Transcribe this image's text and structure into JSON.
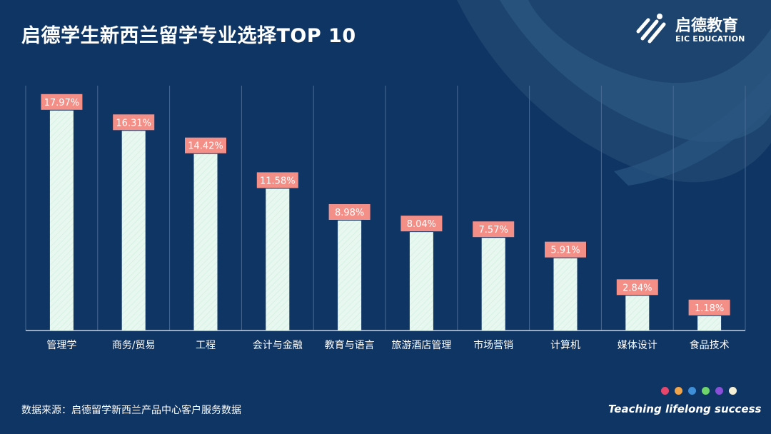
{
  "header": {
    "title": "启德学生新西兰留学专业选择TOP 10"
  },
  "brand": {
    "name_cn": "启德教育",
    "name_en": "EIC EDUCATION",
    "logo_icon": "eic-logo-icon"
  },
  "footer": {
    "source": "数据来源：启德留学新西兰产品中心客户服务数据",
    "slogan": "Teaching lifelong success",
    "dot_colors": [
      "#e8466a",
      "#f0a54a",
      "#3f8fd8",
      "#6fd46b",
      "#8a4fd8",
      "#f4f0d8"
    ]
  },
  "colors": {
    "background": "#0f3564",
    "bar": "#e8f8f0",
    "label_background": "#f48f88"
  },
  "chart_data": {
    "type": "bar",
    "title": "启德学生新西兰留学专业选择TOP 10",
    "xlabel": "",
    "ylabel": "",
    "ylim": [
      0,
      20
    ],
    "categories": [
      "管理学",
      "商务/贸易",
      "工程",
      "会计与金融",
      "教育与语言",
      "旅游酒店管理",
      "市场营销",
      "计算机",
      "媒体设计",
      "食品技术"
    ],
    "values": [
      17.97,
      16.31,
      14.42,
      11.58,
      8.98,
      8.04,
      7.57,
      5.91,
      2.84,
      1.18
    ],
    "value_labels": [
      "17.97%",
      "16.31%",
      "14.42%",
      "11.58%",
      "8.98%",
      "8.04%",
      "7.57%",
      "5.91%",
      "2.84%",
      "1.18%"
    ],
    "grid": true,
    "legend": "none"
  }
}
